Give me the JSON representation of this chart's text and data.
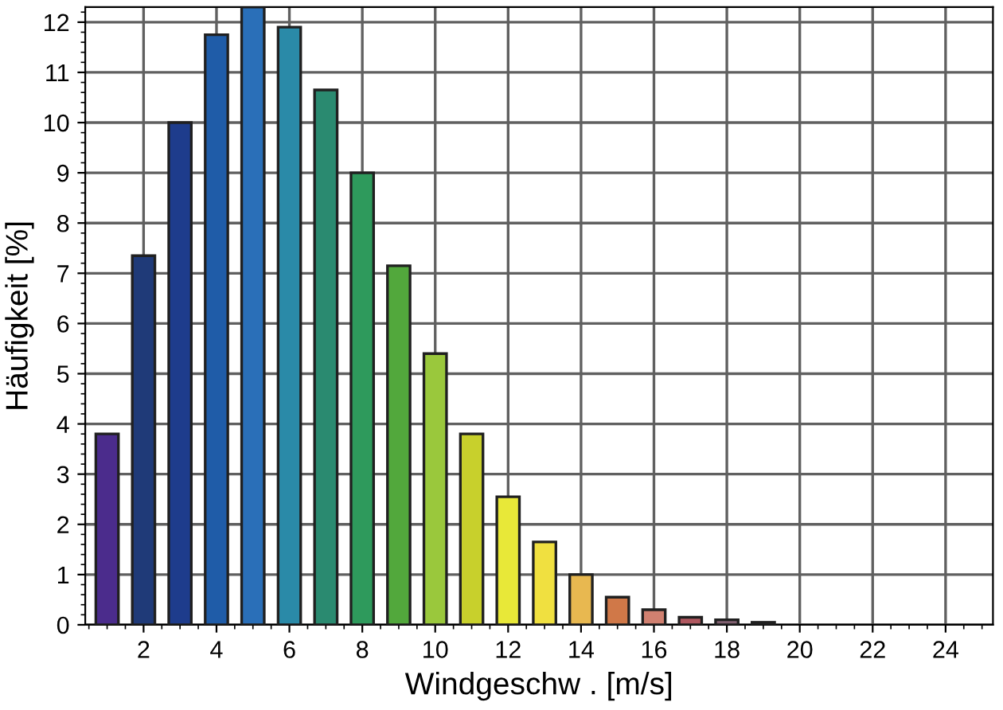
{
  "chart_data": {
    "type": "bar",
    "xlabel": "Windgeschw . [m/s]",
    "ylabel": "Häufigkeit [%]",
    "x": [
      1,
      2,
      3,
      4,
      5,
      6,
      7,
      8,
      9,
      10,
      11,
      12,
      13,
      14,
      15,
      16,
      17,
      18,
      19
    ],
    "values": [
      3.8,
      7.35,
      10.0,
      11.75,
      12.3,
      11.9,
      10.65,
      9.0,
      7.15,
      5.4,
      3.8,
      2.55,
      1.65,
      1.0,
      0.55,
      0.3,
      0.15,
      0.1,
      0.05
    ],
    "colors": [
      "#4b2c8c",
      "#1f3a78",
      "#1e3c8c",
      "#1f5ca8",
      "#2a6fb8",
      "#2a8aa8",
      "#2a8a70",
      "#2e9a5c",
      "#52a83c",
      "#9ac83c",
      "#c8d02c",
      "#e8e838",
      "#f0e040",
      "#e8b850",
      "#d07848",
      "#d08070",
      "#b05860",
      "#806070",
      "#606060"
    ],
    "xlim": [
      0.4,
      25.3
    ],
    "xticks": [
      2,
      4,
      6,
      8,
      10,
      12,
      14,
      16,
      18,
      20,
      22,
      24
    ],
    "ylim": [
      0,
      12.3
    ],
    "yticks": [
      0,
      1,
      2,
      3,
      4,
      5,
      6,
      7,
      8,
      9,
      10,
      11,
      12
    ],
    "grid": true
  }
}
